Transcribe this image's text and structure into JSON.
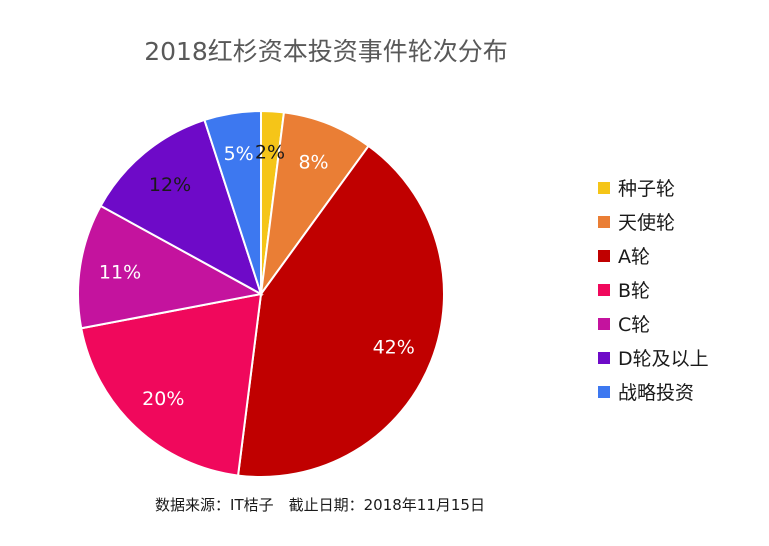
{
  "chart_data": {
    "type": "pie",
    "title": "2018红杉资本投资事件轮次分布",
    "categories": [
      "种子轮",
      "天使轮",
      "A轮",
      "B轮",
      "C轮",
      "D轮及以上",
      "战略投资"
    ],
    "values": [
      2,
      8,
      42,
      20,
      11,
      12,
      5
    ],
    "labels": [
      "2%",
      "8%",
      "42%",
      "20%",
      "11%",
      "12%",
      "5%"
    ],
    "colors": [
      "#f5c518",
      "#ea7e35",
      "#c00000",
      "#f0085c",
      "#c4139e",
      "#6e0ac8",
      "#3d78f0"
    ],
    "label_colors": [
      "#1a1a1a",
      "#ffffff",
      "#ffffff",
      "#ffffff",
      "#ffffff",
      "#1a1a1a",
      "#ffffff"
    ],
    "start_angle": "12 o'clock",
    "direction": "clockwise",
    "legend_position": "right",
    "source": "数据来源：IT桔子　截止日期：2018年11月15日"
  }
}
